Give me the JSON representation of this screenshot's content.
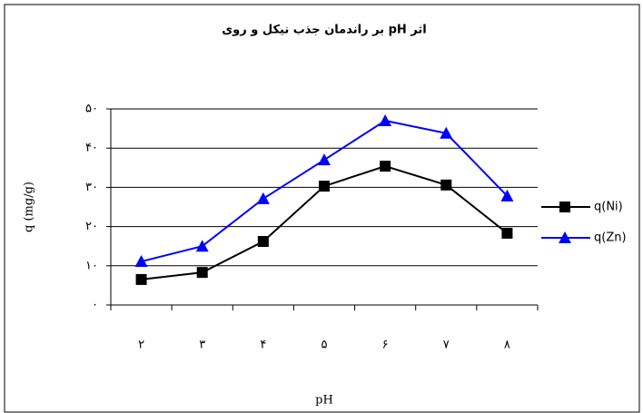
{
  "chart_data": {
    "type": "line",
    "title": "اثر pH  بر راندمان جذب نیکل و روی",
    "x_label": "pH",
    "y_label": "q (mg/g)",
    "categories": [
      "۲",
      "۳",
      "۴",
      "۵",
      "۶",
      "۷",
      "۸"
    ],
    "series": [
      {
        "name": "q(Ni)",
        "color": "#000000",
        "marker": "square",
        "values": [
          6.5,
          8.3,
          16.2,
          30.3,
          35.4,
          30.6,
          18.3
        ]
      },
      {
        "name": "q(Zn)",
        "color": "#0000ff",
        "marker": "triangle",
        "values": [
          11.1,
          15,
          27.1,
          37,
          47,
          43.8,
          27.8
        ]
      }
    ],
    "ylim": [
      0,
      50
    ],
    "yticks": [
      {
        "value": 0,
        "label": "۰"
      },
      {
        "value": 10,
        "label": "۱۰"
      },
      {
        "value": 20,
        "label": "۲۰"
      },
      {
        "value": 30,
        "label": "۳۰"
      },
      {
        "value": 40,
        "label": "۴۰"
      },
      {
        "value": 50,
        "label": "۵۰"
      }
    ],
    "grid": true,
    "legend": "right"
  }
}
